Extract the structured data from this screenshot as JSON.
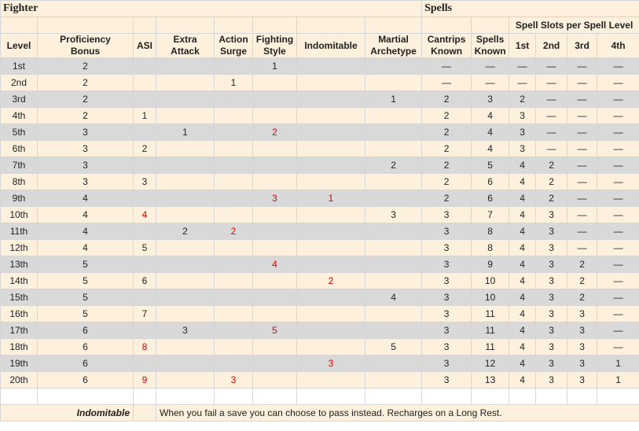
{
  "sheet": {
    "class_title": "Fighter",
    "spells_title": "Spells",
    "slot_group_label": "Spell Slots per Spell Level",
    "columns": {
      "level": "Level",
      "prof_1": "Proficiency",
      "prof_2": "Bonus",
      "asi": "ASI",
      "extra_1": "Extra",
      "extra_2": "Attack",
      "surge_1": "Action",
      "surge_2": "Surge",
      "style_1": "Fighting",
      "style_2": "Style",
      "indom": "Indomitable",
      "arch_1": "Martial",
      "arch_2": "Archetype",
      "cantrips_1": "Cantrips",
      "cantrips_2": "Known",
      "spells_1": "Spells",
      "spells_2": "Known",
      "s1": "1st",
      "s2": "2nd",
      "s3": "3rd",
      "s4": "4th"
    },
    "rows": [
      [
        "1st",
        "2",
        "",
        "",
        "",
        "1",
        "",
        "",
        "—",
        "—",
        "—",
        "—",
        "—",
        "—"
      ],
      [
        "2nd",
        "2",
        "",
        "",
        "1",
        "",
        "",
        "",
        "—",
        "—",
        "—",
        "—",
        "—",
        "—"
      ],
      [
        "3rd",
        "2",
        "",
        "",
        "",
        "",
        "",
        "1",
        "2",
        "3",
        "2",
        "—",
        "—",
        "—"
      ],
      [
        "4th",
        "2",
        "1",
        "",
        "",
        "",
        "",
        "",
        "2",
        "4",
        "3",
        "—",
        "—",
        "—"
      ],
      [
        "5th",
        "3",
        "",
        "1",
        "",
        "2",
        "",
        "",
        "2",
        "4",
        "3",
        "—",
        "—",
        "—"
      ],
      [
        "6th",
        "3",
        "2",
        "",
        "",
        "",
        "",
        "",
        "2",
        "4",
        "3",
        "—",
        "—",
        "—"
      ],
      [
        "7th",
        "3",
        "",
        "",
        "",
        "",
        "",
        "2",
        "2",
        "5",
        "4",
        "2",
        "—",
        "—"
      ],
      [
        "8th",
        "3",
        "3",
        "",
        "",
        "",
        "",
        "",
        "2",
        "6",
        "4",
        "2",
        "—",
        "—"
      ],
      [
        "9th",
        "4",
        "",
        "",
        "",
        "3",
        "1",
        "",
        "2",
        "6",
        "4",
        "2",
        "—",
        "—"
      ],
      [
        "10th",
        "4",
        "4",
        "",
        "",
        "",
        "",
        "3",
        "3",
        "7",
        "4",
        "3",
        "—",
        "—"
      ],
      [
        "11th",
        "4",
        "",
        "2",
        "2",
        "",
        "",
        "",
        "3",
        "8",
        "4",
        "3",
        "—",
        "—"
      ],
      [
        "12th",
        "4",
        "5",
        "",
        "",
        "",
        "",
        "",
        "3",
        "8",
        "4",
        "3",
        "—",
        "—"
      ],
      [
        "13th",
        "5",
        "",
        "",
        "",
        "4",
        "",
        "",
        "3",
        "9",
        "4",
        "3",
        "2",
        "—"
      ],
      [
        "14th",
        "5",
        "6",
        "",
        "",
        "",
        "2",
        "",
        "3",
        "10",
        "4",
        "3",
        "2",
        "—"
      ],
      [
        "15th",
        "5",
        "",
        "",
        "",
        "",
        "",
        "4",
        "3",
        "10",
        "4",
        "3",
        "2",
        "—"
      ],
      [
        "16th",
        "5",
        "7",
        "",
        "",
        "",
        "",
        "",
        "3",
        "11",
        "4",
        "3",
        "3",
        "—"
      ],
      [
        "17th",
        "6",
        "",
        "3",
        "",
        "5",
        "",
        "",
        "3",
        "11",
        "4",
        "3",
        "3",
        "—"
      ],
      [
        "18th",
        "6",
        "8",
        "",
        "",
        "",
        "",
        "5",
        "3",
        "11",
        "4",
        "3",
        "3",
        "—"
      ],
      [
        "19th",
        "6",
        "",
        "",
        "",
        "",
        "3",
        "",
        "3",
        "12",
        "4",
        "3",
        "3",
        "1"
      ],
      [
        "20th",
        "6",
        "9",
        "",
        "3",
        "",
        "",
        "",
        "3",
        "13",
        "4",
        "3",
        "3",
        "1"
      ]
    ],
    "red_cells": [
      [
        4,
        5
      ],
      [
        8,
        5
      ],
      [
        8,
        6
      ],
      [
        9,
        2
      ],
      [
        10,
        4
      ],
      [
        12,
        5
      ],
      [
        13,
        6
      ],
      [
        16,
        5
      ],
      [
        17,
        2
      ],
      [
        18,
        6
      ],
      [
        19,
        2
      ],
      [
        19,
        4
      ]
    ],
    "footer": {
      "name": "Indomitable",
      "description": "When you fail a save you can choose to pass instead. Recharges on a Long Rest."
    },
    "colors": {
      "gray_row": "#d9d9d9",
      "cream_row": "#fdf0dc",
      "highlight_text": "#e00000"
    }
  }
}
